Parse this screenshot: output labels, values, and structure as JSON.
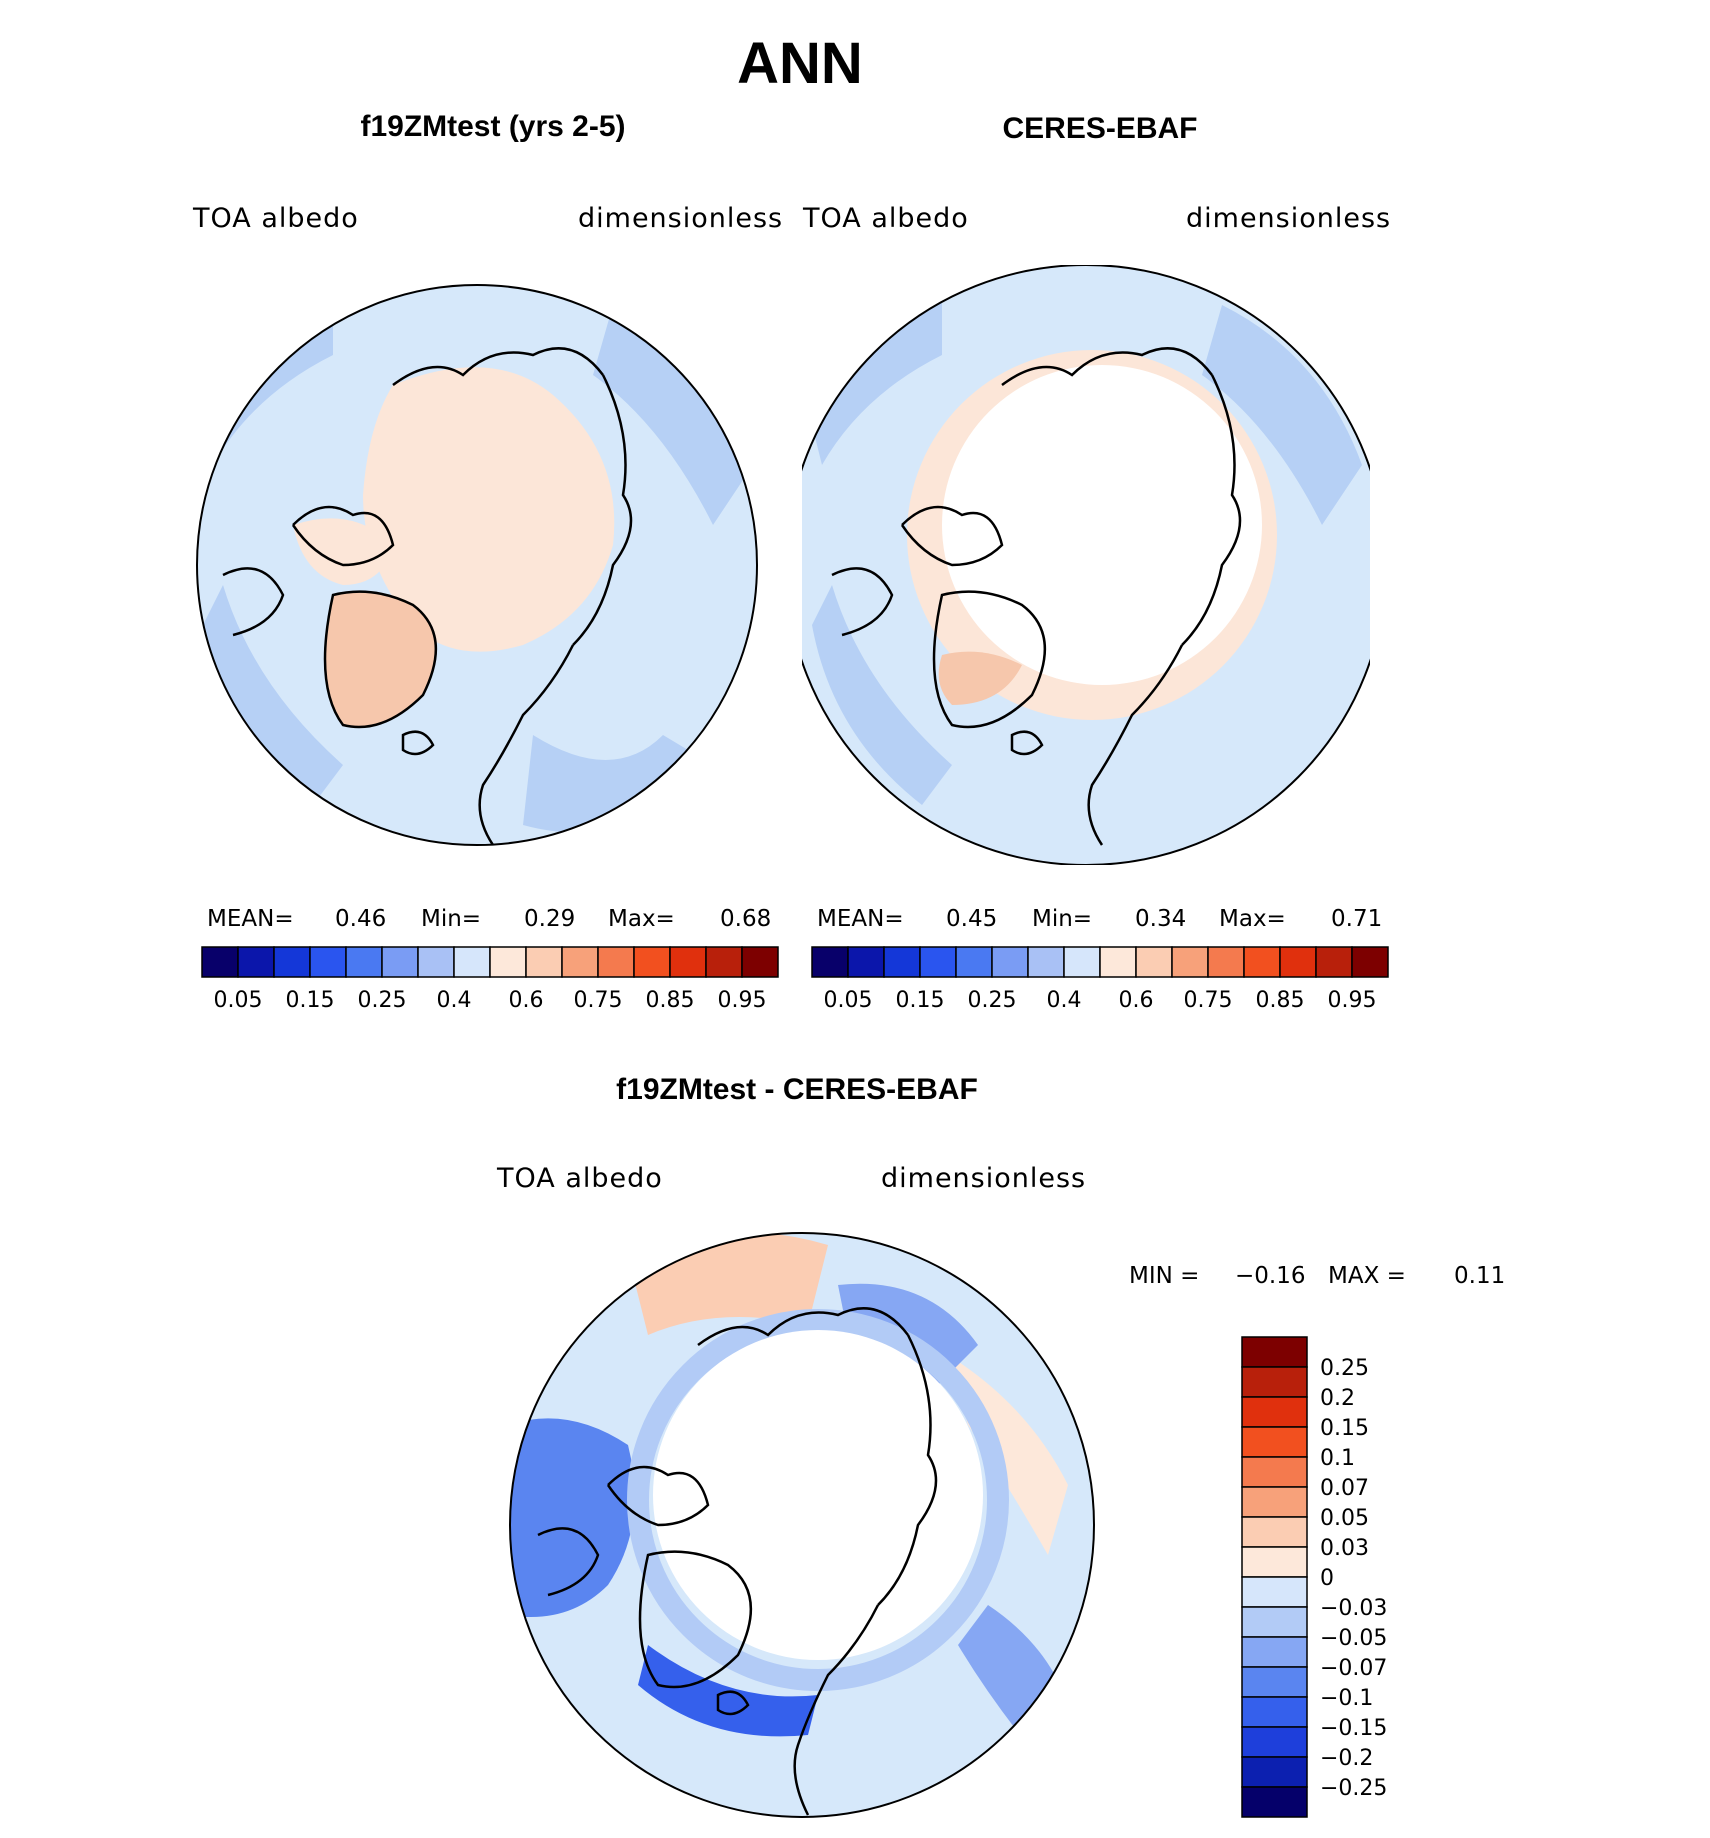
{
  "figure_title": "ANN",
  "colors": {
    "ocean_light": "#d6e8fa",
    "ocean_mid": "#b6d0f5",
    "ice_pos": "#fce6d8",
    "white": "#ffffff",
    "coast": "#000000"
  },
  "panels": [
    {
      "title": "f19ZMtest (yrs 2-5)",
      "left_label": "TOA albedo",
      "right_label": "dimensionless",
      "stats": {
        "mean_label": "MEAN=",
        "mean": "0.46",
        "min_label": "Min=",
        "min": "0.29",
        "max_label": "Max=",
        "max": "0.68"
      }
    },
    {
      "title": "CERES-EBAF",
      "left_label": "TOA albedo",
      "right_label": "dimensionless",
      "stats": {
        "mean_label": "MEAN=",
        "mean": "0.45",
        "min_label": "Min=",
        "min": "0.34",
        "max_label": "Max=",
        "max": "0.71"
      }
    }
  ],
  "abs_colorbar": {
    "colors": [
      "#08006a",
      "#0b16ab",
      "#1437d8",
      "#2a55ef",
      "#4a79f2",
      "#7a9cf4",
      "#a9c1f5",
      "#d6e6fb",
      "#fde8da",
      "#fbcdb3",
      "#f7a17a",
      "#f47a4e",
      "#f2501f",
      "#e0300d",
      "#b8200b",
      "#7d0000"
    ],
    "tick_labels": [
      "0.05",
      "0.15",
      "0.25",
      "0.4",
      "0.6",
      "0.75",
      "0.85",
      "0.95"
    ]
  },
  "diff_panel": {
    "title": "f19ZMtest - CERES-EBAF",
    "left_label": "TOA albedo",
    "right_label": "dimensionless",
    "min_label": "MIN =",
    "min": "−0.16",
    "max_label": "MAX =",
    "max": "0.11"
  },
  "diff_colorbar": {
    "colors": [
      "#7d0000",
      "#b8200b",
      "#e0300d",
      "#f2501f",
      "#f47a4e",
      "#f7a17a",
      "#fbcdb3",
      "#fde8da",
      "#d6e6fb",
      "#b2cbf6",
      "#86a7f3",
      "#5a85f0",
      "#3560ec",
      "#1e3fdb",
      "#0c20b0",
      "#05006a"
    ],
    "tick_labels": [
      "0.25",
      "0.2",
      "0.15",
      "0.1",
      "0.07",
      "0.05",
      "0.03",
      "0",
      "−0.03",
      "−0.05",
      "−0.07",
      "−0.1",
      "−0.15",
      "−0.2",
      "−0.25"
    ]
  }
}
